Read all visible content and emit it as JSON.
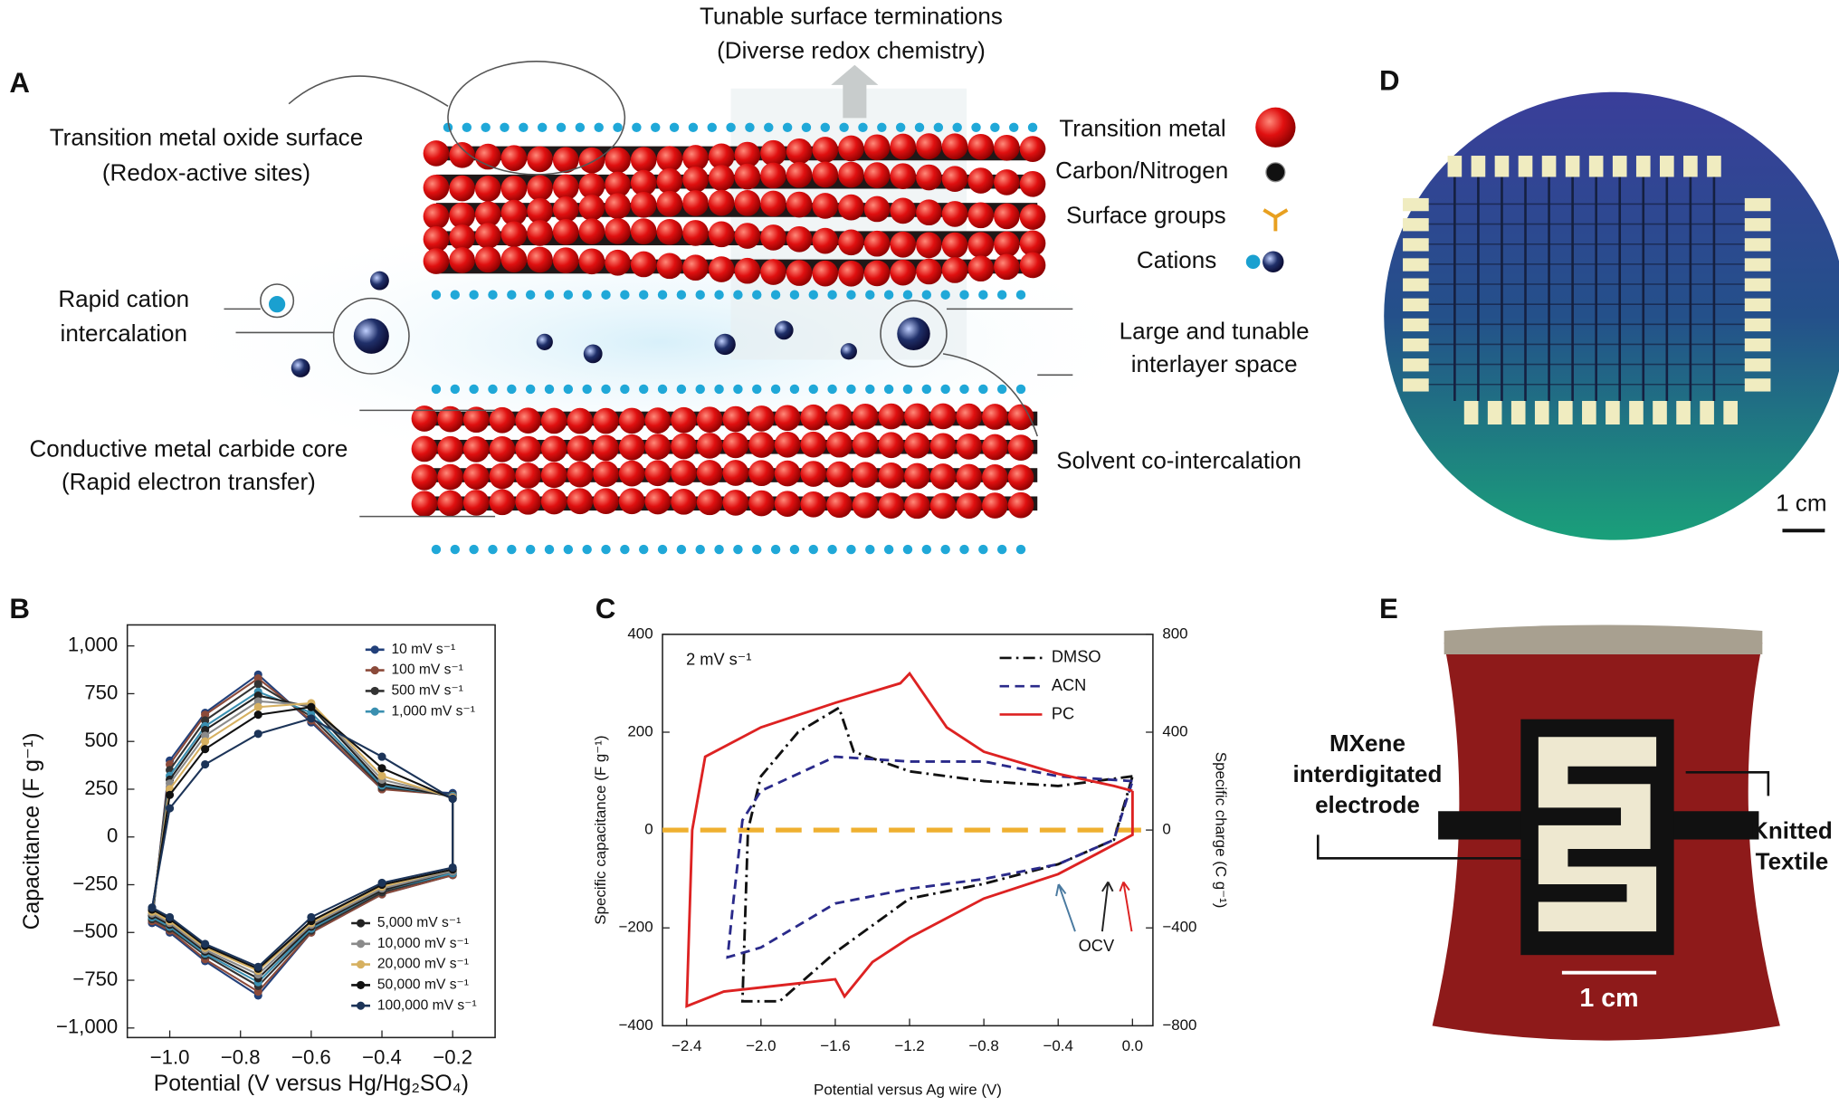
{
  "panel_a": {
    "label": "A",
    "terminations": [
      "Tunable surface terminations",
      "(Diverse redox chemistry)"
    ],
    "oxide_surface": [
      "Transition metal oxide surface",
      "(Redox-active sites)"
    ],
    "cation_intercalation": [
      "Rapid cation",
      "intercalation"
    ],
    "carbide_core": [
      "Conductive metal carbide core",
      "(Rapid electron transfer)"
    ],
    "legend": [
      "Transition metal",
      "Carbon/Nitrogen",
      "Surface groups",
      "Cations"
    ],
    "interlayer": [
      "Large and tunable",
      "interlayer space"
    ],
    "solvent": "Solvent co-intercalation"
  },
  "panel_d": {
    "label": "D",
    "scale": "1 cm"
  },
  "panel_e": {
    "label": "E",
    "electrode": [
      "MXene",
      "interdigitated",
      "electrode"
    ],
    "textile": [
      "Knitted",
      "Textile"
    ],
    "scale": "1 cm"
  },
  "chart_data": [
    {
      "type": "line",
      "label": "B",
      "x_label": "Potential (V versus Hg/Hg₂SO₄)",
      "y_label": "Capacitance (F g⁻¹)",
      "xlim": [
        -1.12,
        -0.08
      ],
      "ylim": [
        -1050,
        1110
      ],
      "xticks": [
        {
          "value": -1.0,
          "label": "−1.0"
        },
        {
          "value": -0.8,
          "label": "−0.8"
        },
        {
          "value": -0.6,
          "label": "−0.6"
        },
        {
          "value": -0.4,
          "label": "−0.4"
        },
        {
          "value": -0.2,
          "label": "−0.2"
        }
      ],
      "yticks": [
        {
          "value": -1000,
          "label": "−1,000"
        },
        {
          "value": -750,
          "label": "−750"
        },
        {
          "value": -500,
          "label": "−500"
        },
        {
          "value": -250,
          "label": "−250"
        },
        0,
        250,
        500,
        750,
        {
          "value": 1000,
          "label": "1,000"
        }
      ],
      "x": [
        -1.05,
        -1.0,
        -0.9,
        -0.75,
        -0.6,
        -0.4,
        -0.2,
        -0.2,
        -0.4,
        -0.6,
        -0.75,
        -0.9,
        -1.0,
        -1.05
      ],
      "series": [
        {
          "name": "10 mV s⁻¹",
          "color": "#22407a",
          "values": [
            -450,
            400,
            650,
            850,
            600,
            250,
            230,
            -200,
            -300,
            -500,
            -830,
            -650,
            -500,
            -450
          ]
        },
        {
          "name": "100 mV s⁻¹",
          "color": "#8b4a3a",
          "values": [
            -440,
            380,
            640,
            830,
            610,
            250,
            220,
            -200,
            -300,
            -500,
            -810,
            -640,
            -490,
            -440
          ]
        },
        {
          "name": "500 mV s⁻¹",
          "color": "#333333",
          "values": [
            -430,
            350,
            610,
            800,
            630,
            260,
            220,
            -190,
            -290,
            -490,
            -780,
            -620,
            -480,
            -430
          ]
        },
        {
          "name": "1,000 mV s⁻¹",
          "color": "#3a8fb0",
          "values": [
            -420,
            320,
            580,
            760,
            650,
            270,
            215,
            -190,
            -280,
            -480,
            -760,
            -610,
            -470,
            -420
          ]
        },
        {
          "name": "5,000 mV s⁻¹",
          "color": "#222222",
          "values": [
            -410,
            300,
            560,
            740,
            680,
            280,
            210,
            -180,
            -280,
            -470,
            -740,
            -600,
            -460,
            -410
          ]
        },
        {
          "name": "10,000 mV s⁻¹",
          "color": "#8a8a8a",
          "values": [
            -400,
            280,
            530,
            710,
            690,
            300,
            210,
            -180,
            -270,
            -460,
            -720,
            -590,
            -450,
            -400
          ]
        },
        {
          "name": "20,000 mV s⁻¹",
          "color": "#d6b060",
          "values": [
            -390,
            250,
            500,
            680,
            700,
            320,
            205,
            -170,
            -260,
            -450,
            -700,
            -580,
            -440,
            -390
          ]
        },
        {
          "name": "50,000 mV s⁻¹",
          "color": "#111111",
          "values": [
            -380,
            220,
            460,
            640,
            680,
            360,
            200,
            -170,
            -250,
            -440,
            -690,
            -570,
            -430,
            -380
          ]
        },
        {
          "name": "100,000 mV s⁻¹",
          "color": "#1c3458",
          "values": [
            -370,
            150,
            380,
            540,
            620,
            420,
            200,
            -160,
            -240,
            -420,
            -680,
            -560,
            -420,
            -370
          ]
        }
      ]
    },
    {
      "type": "line",
      "label": "C",
      "x_label": "Potential versus Ag wire (V)",
      "y_label": "Specific capacitance (F g⁻¹)",
      "y2_label": "Specific charge (C g⁻¹)",
      "annotations": [
        "2 mV s⁻¹",
        "OCV"
      ],
      "xlim": [
        -2.53,
        0.11
      ],
      "ylim": [
        -400,
        400
      ],
      "y2lim": [
        -800,
        800
      ],
      "xticks": [
        {
          "value": -2.4,
          "label": "−2.4"
        },
        {
          "value": -2.0,
          "label": "−2.0"
        },
        {
          "value": -1.6,
          "label": "−1.6"
        },
        {
          "value": -1.2,
          "label": "−1.2"
        },
        {
          "value": -0.8,
          "label": "−0.8"
        },
        {
          "value": -0.4,
          "label": "−0.4"
        },
        {
          "value": 0,
          "label": "0.0"
        }
      ],
      "yticks": [
        {
          "value": -400,
          "label": "−400"
        },
        {
          "value": -200,
          "label": "−200"
        },
        0,
        200,
        400
      ],
      "y2ticks": [
        {
          "value": -800,
          "label": "−800"
        },
        {
          "value": -400,
          "label": "−400"
        },
        0,
        400,
        800
      ],
      "zero_line_color": "#efb030",
      "series": [
        {
          "name": "DMSO",
          "color": "#111111",
          "style": "dashdot",
          "x": [
            0.0,
            -0.4,
            -0.8,
            -1.2,
            -1.5,
            -1.58,
            -1.8,
            -2.0,
            -2.07,
            -2.1,
            -1.9,
            -1.6,
            -1.2,
            -0.8,
            -0.4,
            -0.1,
            0.0
          ],
          "values": [
            110,
            90,
            100,
            120,
            160,
            250,
            200,
            110,
            0,
            -350,
            -350,
            -250,
            -140,
            -110,
            -70,
            -20,
            110
          ]
        },
        {
          "name": "ACN",
          "color": "#2a2a8a",
          "style": "dashed",
          "x": [
            0.0,
            -0.4,
            -0.8,
            -1.2,
            -1.6,
            -2.0,
            -2.1,
            -2.15,
            -2.18,
            -2.0,
            -1.6,
            -1.2,
            -0.8,
            -0.4,
            -0.1,
            0.0
          ],
          "values": [
            100,
            110,
            140,
            140,
            150,
            80,
            20,
            -150,
            -260,
            -240,
            -150,
            -120,
            -100,
            -70,
            -20,
            100
          ]
        },
        {
          "name": "PC",
          "color": "#dd2222",
          "style": "solid",
          "x": [
            0.0,
            -0.1,
            -0.4,
            -0.8,
            -1.0,
            -1.2,
            -1.25,
            -1.6,
            -2.0,
            -2.3,
            -2.37,
            -2.4,
            -2.2,
            -1.6,
            -1.55,
            -1.4,
            -1.2,
            -0.8,
            -0.4,
            -0.2,
            0.0,
            0.0
          ],
          "values": [
            80,
            90,
            115,
            160,
            210,
            320,
            300,
            260,
            210,
            150,
            0,
            -360,
            -330,
            -305,
            -340,
            -270,
            -220,
            -140,
            -90,
            -50,
            -10,
            80
          ]
        }
      ]
    }
  ]
}
